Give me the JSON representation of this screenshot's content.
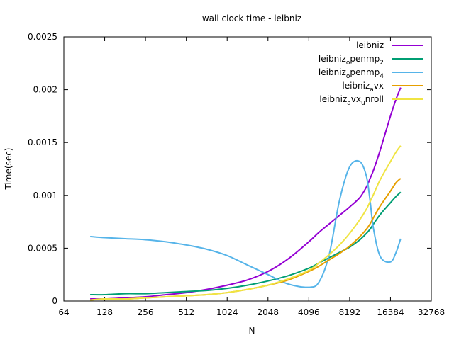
{
  "chart_data": {
    "type": "line",
    "title": "wall clock time - leibniz",
    "xlabel": "N",
    "ylabel": "Time(sec)",
    "x_scale": "log2",
    "xlim": [
      64,
      32768
    ],
    "ylim": [
      0,
      0.0025
    ],
    "x_ticks": [
      64,
      128,
      256,
      512,
      1024,
      2048,
      4096,
      8192,
      16384,
      32768
    ],
    "x_tick_labels": [
      "64",
      "128",
      "256",
      "512",
      "1024",
      "2048",
      "4096",
      "8192",
      "16384",
      "32768"
    ],
    "y_ticks": [
      0,
      0.0005,
      0.001,
      0.0015,
      0.002,
      0.0025
    ],
    "y_tick_labels": [
      "0",
      "0.0005",
      "0.001",
      "0.0015",
      "0.002",
      "0.0025"
    ],
    "legend_position": "top-right",
    "grid": false,
    "x": [
      100,
      128,
      181,
      256,
      362,
      512,
      724,
      1024,
      1448,
      2048,
      2896,
      4096,
      4871,
      5793,
      6889,
      8192,
      9742,
      10900,
      11585,
      12300,
      13777,
      16384,
      18000,
      19484
    ],
    "series": [
      {
        "name": "leibniz",
        "name_parts": [
          {
            "text": "leibniz",
            "sub": ""
          }
        ],
        "color": "#9400d3",
        "values": [
          2e-05,
          2e-05,
          3e-05,
          4e-05,
          6e-05,
          8e-05,
          0.00011,
          0.00015,
          0.0002,
          0.00028,
          0.0004,
          0.00056,
          0.00065,
          0.00073,
          0.00081,
          0.00089,
          0.00098,
          0.00108,
          0.00116,
          0.00124,
          0.00143,
          0.00175,
          0.00191,
          0.00202
        ]
      },
      {
        "name": "leibniz_openmp_2",
        "name_parts": [
          {
            "text": "leibniz",
            "sub": "o"
          },
          {
            "text": "penmp",
            "sub": "2"
          }
        ],
        "color": "#009e73",
        "values": [
          6e-05,
          6e-05,
          7e-05,
          7e-05,
          8e-05,
          9e-05,
          0.0001,
          0.00012,
          0.00015,
          0.00019,
          0.00024,
          0.00031,
          0.00036,
          0.00041,
          0.00046,
          0.00051,
          0.00058,
          0.00064,
          0.00068,
          0.00073,
          0.00082,
          0.00093,
          0.00099,
          0.00103
        ]
      },
      {
        "name": "leibniz_openmp_4",
        "name_parts": [
          {
            "text": "leibniz",
            "sub": "o"
          },
          {
            "text": "penmp",
            "sub": "4"
          }
        ],
        "color": "#56b4e9",
        "values": [
          0.00061,
          0.0006,
          0.00059,
          0.00058,
          0.00056,
          0.00053,
          0.00049,
          0.00043,
          0.00034,
          0.00025,
          0.00016,
          0.00013,
          0.00018,
          0.00044,
          0.00095,
          0.00127,
          0.00132,
          0.00118,
          0.00095,
          0.00068,
          0.00042,
          0.00037,
          0.00046,
          0.00059
        ]
      },
      {
        "name": "leibniz_avx",
        "name_parts": [
          {
            "text": "leibniz",
            "sub": "a"
          },
          {
            "text": "vx",
            "sub": ""
          }
        ],
        "color": "#e69f00",
        "values": [
          1e-05,
          2e-05,
          2e-05,
          3e-05,
          4e-05,
          5e-05,
          6e-05,
          8e-05,
          0.00011,
          0.00015,
          0.0002,
          0.00028,
          0.00033,
          0.00039,
          0.00045,
          0.00052,
          0.00061,
          0.00068,
          0.00073,
          0.00079,
          0.0009,
          0.00104,
          0.00112,
          0.00116
        ]
      },
      {
        "name": "leibniz_avx_unroll",
        "name_parts": [
          {
            "text": "leibniz",
            "sub": "a"
          },
          {
            "text": "vx",
            "sub": "u"
          },
          {
            "text": "nroll",
            "sub": ""
          }
        ],
        "color": "#f0e442",
        "values": [
          1e-05,
          2e-05,
          2e-05,
          3e-05,
          4e-05,
          5e-05,
          6e-05,
          8e-05,
          0.00011,
          0.00015,
          0.00021,
          0.00029,
          0.00036,
          0.00044,
          0.00053,
          0.00064,
          0.00077,
          0.00087,
          0.00094,
          0.00101,
          0.00115,
          0.00132,
          0.00141,
          0.00147
        ]
      }
    ]
  }
}
